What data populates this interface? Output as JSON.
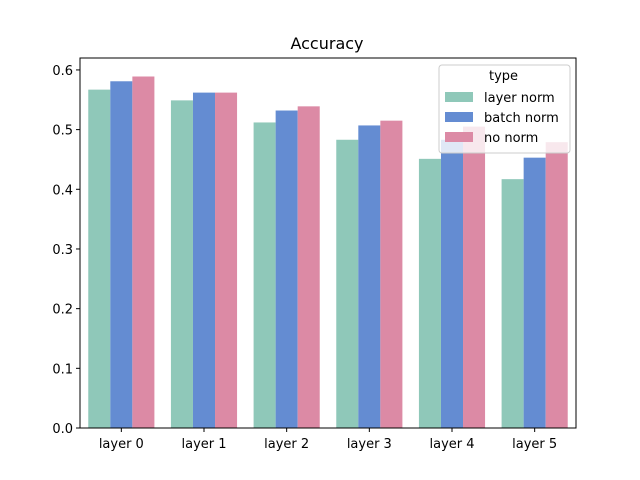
{
  "chart_data": {
    "type": "bar",
    "title": "Accuracy",
    "xlabel": "",
    "ylabel": "",
    "categories": [
      "layer 0",
      "layer 1",
      "layer 2",
      "layer 3",
      "layer 4",
      "layer 5"
    ],
    "ylim": [
      0,
      0.62
    ],
    "yticks": [
      0.0,
      0.1,
      0.2,
      0.3,
      0.4,
      0.5,
      0.6
    ],
    "ytick_labels": [
      "0.0",
      "0.1",
      "0.2",
      "0.3",
      "0.4",
      "0.5",
      "0.6"
    ],
    "grid": false,
    "legend": {
      "title": "type",
      "placement": "top-right"
    },
    "series": [
      {
        "name": "layer norm",
        "color": "#8fc8b9",
        "values": [
          0.567,
          0.549,
          0.512,
          0.483,
          0.451,
          0.417
        ]
      },
      {
        "name": "batch norm",
        "color": "#648cd2",
        "values": [
          0.581,
          0.562,
          0.532,
          0.507,
          0.483,
          0.453
        ]
      },
      {
        "name": "no norm",
        "color": "#dc8aa5",
        "values": [
          0.589,
          0.562,
          0.539,
          0.515,
          0.505,
          0.479
        ]
      }
    ]
  }
}
